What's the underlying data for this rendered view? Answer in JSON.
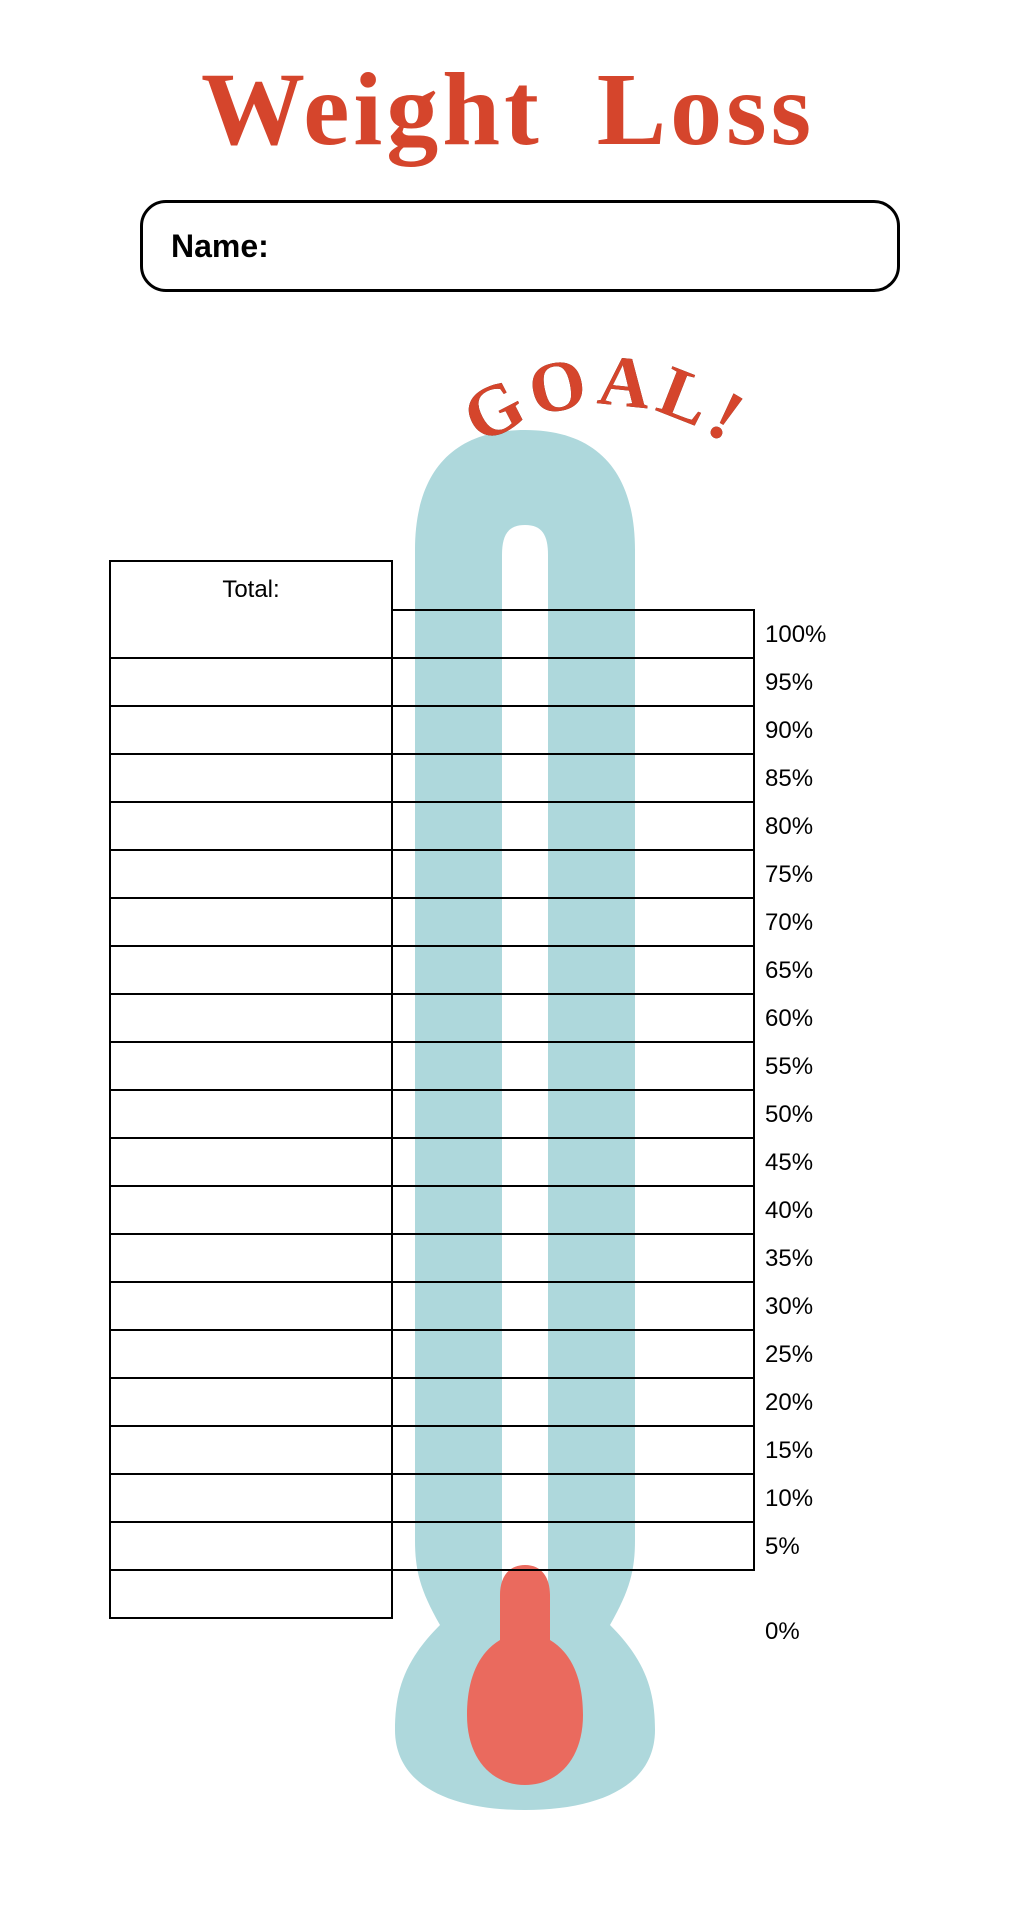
{
  "title": "Weight Loss",
  "title_color": "#d5452c",
  "name_label": "Name:",
  "goal_label": "GOAL!",
  "goal_color": "#d5452c",
  "goal_shadow": "#1a1a1a",
  "total_label": "Total:",
  "thermometer": {
    "body_color": "#aed8dc",
    "tube_color": "#ffffff",
    "mercury_color": "#ea6a5e"
  },
  "percent_labels": [
    "100%",
    "95%",
    "90%",
    "85%",
    "80%",
    "75%",
    "70%",
    "65%",
    "60%",
    "55%",
    "50%",
    "45%",
    "40%",
    "35%",
    "30%",
    "25%",
    "20%",
    "15%",
    "10%",
    "5%"
  ],
  "left_blank_rows": 20,
  "zero_label": "0%",
  "font_sizes": {
    "title": 104,
    "name": 32,
    "table": 24
  },
  "border_color": "#000000",
  "background_color": "#ffffff"
}
